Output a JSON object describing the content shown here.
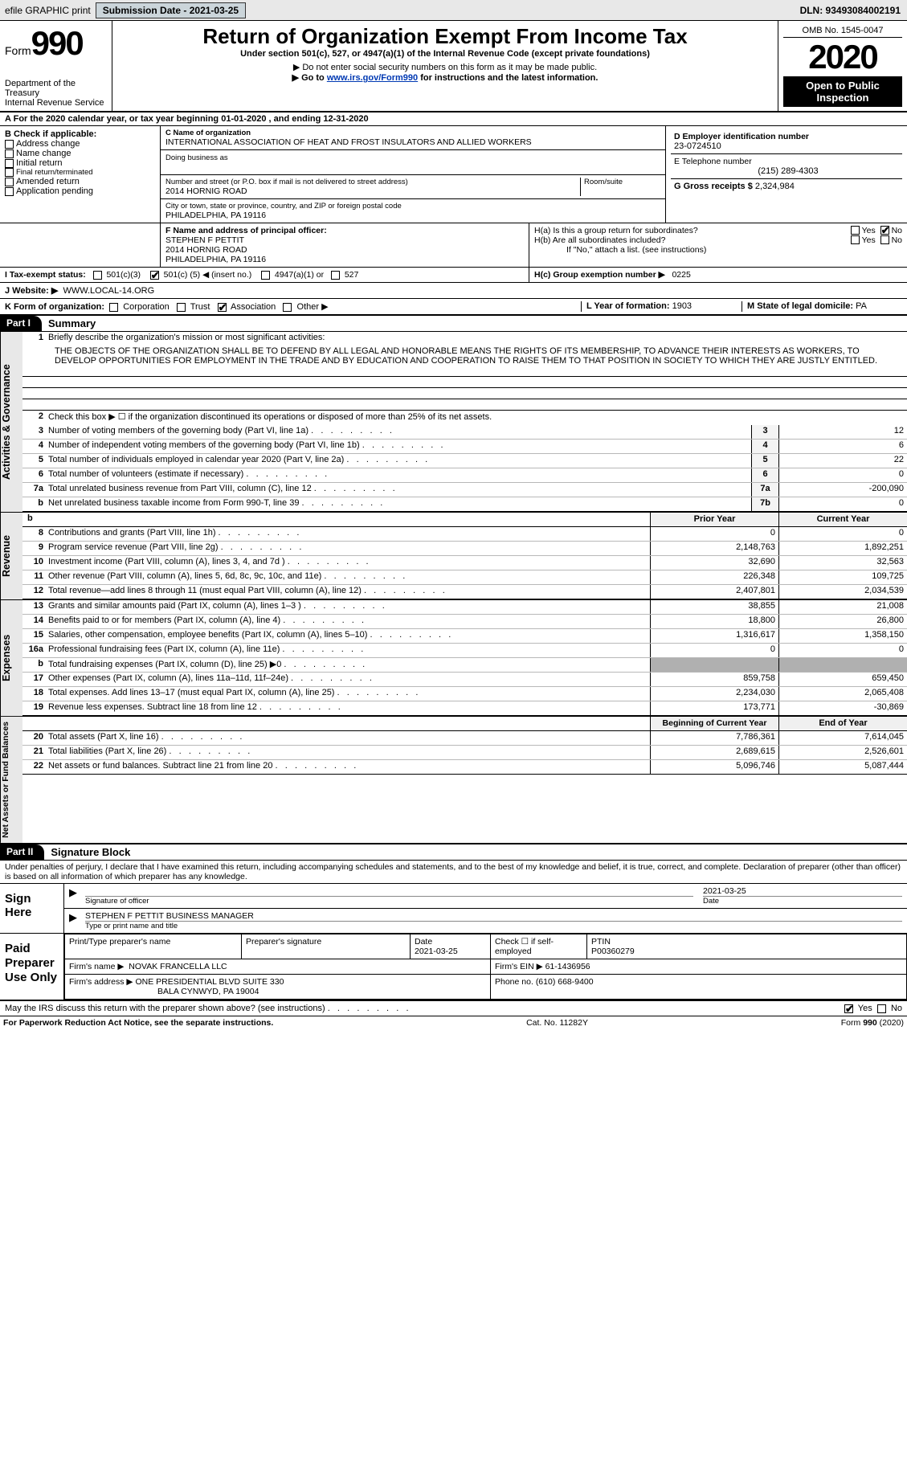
{
  "header_bar": {
    "efile_label": "efile GRAPHIC print",
    "btn_label": "Submission Date - 2021-03-25",
    "dln": "DLN: 93493084002191"
  },
  "top": {
    "form_word": "Form",
    "form_num": "990",
    "dept": "Department of the Treasury\nInternal Revenue Service",
    "title": "Return of Organization Exempt From Income Tax",
    "subtitle": "Under section 501(c), 527, or 4947(a)(1) of the Internal Revenue Code (except private foundations)",
    "note1": "▶ Do not enter social security numbers on this form as it may be made public.",
    "note2_pre": "▶ Go to ",
    "note2_link": "www.irs.gov/Form990",
    "note2_post": " for instructions and the latest information.",
    "omb": "OMB No. 1545-0047",
    "year": "2020",
    "open": "Open to Public Inspection"
  },
  "period": "For the 2020 calendar year, or tax year beginning 01-01-2020     , and ending 12-31-2020",
  "B": {
    "hdr": "B Check if applicable:",
    "items": [
      "Address change",
      "Name change",
      "Initial return",
      "Final return/terminated",
      "Amended return",
      "Application pending"
    ]
  },
  "C": {
    "name_label": "C Name of organization",
    "name": "INTERNATIONAL ASSOCIATION OF HEAT AND FROST INSULATORS AND ALLIED WORKERS",
    "dba_label": "Doing business as",
    "addr_label": "Number and street (or P.O. box if mail is not delivered to street address)",
    "room_label": "Room/suite",
    "addr": "2014 HORNIG ROAD",
    "city_label": "City or town, state or province, country, and ZIP or foreign postal code",
    "city": "PHILADELPHIA, PA  19116"
  },
  "D": {
    "ein_label": "D Employer identification number",
    "ein": "23-0724510",
    "tel_label": "E Telephone number",
    "tel": "(215) 289-4303",
    "gross_label": "G Gross receipts $",
    "gross": "2,324,984"
  },
  "F": {
    "label": "F  Name and address of principal officer:",
    "name": "STEPHEN F PETTIT",
    "addr1": "2014 HORNIG ROAD",
    "addr2": "PHILADELPHIA, PA  19116"
  },
  "H": {
    "a": "H(a)  Is this a group return for subordinates?",
    "b": "H(b)  Are all subordinates included?",
    "note": "If \"No,\" attach a list. (see instructions)",
    "c": "H(c)  Group exemption number ▶",
    "c_val": "0225"
  },
  "I": {
    "label": "I   Tax-exempt status:",
    "c3": "501(c)(3)",
    "c_pre": "501(c) (",
    "c_val": "5",
    "c_post": ") ◀ (insert no.)",
    "a1": "4947(a)(1) or",
    "s527": "527"
  },
  "J": {
    "label": "J   Website: ▶",
    "val": "WWW.LOCAL-14.ORG"
  },
  "K": {
    "label": "K Form of organization:",
    "opts": [
      "Corporation",
      "Trust",
      "Association",
      "Other ▶"
    ],
    "checked": 2
  },
  "L": {
    "label": "L Year of formation:",
    "val": "1903"
  },
  "M": {
    "label": "M State of legal domicile:",
    "val": "PA"
  },
  "part1": {
    "label": "Part I",
    "name": "Summary"
  },
  "mission": {
    "q1label": "Briefly describe the organization's mission or most significant activities:",
    "text": "THE OBJECTS OF THE ORGANIZATION SHALL BE TO DEFEND BY ALL LEGAL AND HONORABLE MEANS THE RIGHTS OF ITS MEMBERSHIP, TO ADVANCE THEIR INTERESTS AS WORKERS, TO DEVELOP OPPORTUNITIES FOR EMPLOYMENT IN THE TRADE AND BY EDUCATION AND COOPERATION TO RAISE THEM TO THAT POSITION IN SOCIETY TO WHICH THEY ARE JUSTLY ENTITLED."
  },
  "gov": {
    "q2": "Check this box ▶ ☐  if the organization discontinued its operations or disposed of more than 25% of its net assets.",
    "rows": [
      {
        "n": "3",
        "t": "Number of voting members of the governing body (Part VI, line 1a)",
        "box": "3",
        "v": "12"
      },
      {
        "n": "4",
        "t": "Number of independent voting members of the governing body (Part VI, line 1b)",
        "box": "4",
        "v": "6"
      },
      {
        "n": "5",
        "t": "Total number of individuals employed in calendar year 2020 (Part V, line 2a)",
        "box": "5",
        "v": "22"
      },
      {
        "n": "6",
        "t": "Total number of volunteers (estimate if necessary)",
        "box": "6",
        "v": "0"
      },
      {
        "n": "7a",
        "t": "Total unrelated business revenue from Part VIII, column (C), line 12",
        "box": "7a",
        "v": "-200,090"
      },
      {
        "n": "b",
        "t": "Net unrelated business taxable income from Form 990-T, line 39",
        "box": "7b",
        "v": "0"
      }
    ]
  },
  "two_col_hdr": {
    "b": "b",
    "py": "Prior Year",
    "cy": "Current Year"
  },
  "rev": [
    {
      "n": "8",
      "t": "Contributions and grants (Part VIII, line 1h)",
      "p": "0",
      "c": "0"
    },
    {
      "n": "9",
      "t": "Program service revenue (Part VIII, line 2g)",
      "p": "2,148,763",
      "c": "1,892,251"
    },
    {
      "n": "10",
      "t": "Investment income (Part VIII, column (A), lines 3, 4, and 7d )",
      "p": "32,690",
      "c": "32,563"
    },
    {
      "n": "11",
      "t": "Other revenue (Part VIII, column (A), lines 5, 6d, 8c, 9c, 10c, and 11e)",
      "p": "226,348",
      "c": "109,725"
    },
    {
      "n": "12",
      "t": "Total revenue—add lines 8 through 11 (must equal Part VIII, column (A), line 12)",
      "p": "2,407,801",
      "c": "2,034,539"
    }
  ],
  "exp": [
    {
      "n": "13",
      "t": "Grants and similar amounts paid (Part IX, column (A), lines 1–3 )",
      "p": "38,855",
      "c": "21,008"
    },
    {
      "n": "14",
      "t": "Benefits paid to or for members (Part IX, column (A), line 4)",
      "p": "18,800",
      "c": "26,800"
    },
    {
      "n": "15",
      "t": "Salaries, other compensation, employee benefits (Part IX, column (A), lines 5–10)",
      "p": "1,316,617",
      "c": "1,358,150"
    },
    {
      "n": "16a",
      "t": "Professional fundraising fees (Part IX, column (A), line 11e)",
      "p": "0",
      "c": "0"
    },
    {
      "n": "b",
      "t": "Total fundraising expenses (Part IX, column (D), line 25) ▶0",
      "p": "",
      "c": "",
      "gray": true
    },
    {
      "n": "17",
      "t": "Other expenses (Part IX, column (A), lines 11a–11d, 11f–24e)",
      "p": "859,758",
      "c": "659,450"
    },
    {
      "n": "18",
      "t": "Total expenses. Add lines 13–17 (must equal Part IX, column (A), line 25)",
      "p": "2,234,030",
      "c": "2,065,408"
    },
    {
      "n": "19",
      "t": "Revenue less expenses. Subtract line 18 from line 12",
      "p": "173,771",
      "c": "-30,869"
    }
  ],
  "na_hdr": {
    "b": "Beginning of Current Year",
    "e": "End of Year"
  },
  "na": [
    {
      "n": "20",
      "t": "Total assets (Part X, line 16)",
      "p": "7,786,361",
      "c": "7,614,045"
    },
    {
      "n": "21",
      "t": "Total liabilities (Part X, line 26)",
      "p": "2,689,615",
      "c": "2,526,601"
    },
    {
      "n": "22",
      "t": "Net assets or fund balances. Subtract line 21 from line 20",
      "p": "5,096,746",
      "c": "5,087,444"
    }
  ],
  "part2": {
    "label": "Part II",
    "name": "Signature Block"
  },
  "sig": {
    "decl": "Under penalties of perjury, I declare that I have examined this return, including accompanying schedules and statements, and to the best of my knowledge and belief, it is true, correct, and complete. Declaration of preparer (other than officer) is based on all information of which preparer has any knowledge.",
    "sign_here": "Sign Here",
    "date": "2021-03-25",
    "sig_label": "Signature of officer",
    "date_label": "Date",
    "name": "STEPHEN F PETTIT  BUSINESS MANAGER",
    "name_label": "Type or print name and title"
  },
  "prep": {
    "hdr": "Paid Preparer Use Only",
    "h1": "Print/Type preparer's name",
    "h2": "Preparer's signature",
    "h3": "Date",
    "h3v": "2021-03-25",
    "h4": "Check ☐ if self-employed",
    "h5": "PTIN",
    "h5v": "P00360279",
    "firm_l": "Firm's name    ▶",
    "firm": "NOVAK FRANCELLA LLC",
    "ein_l": "Firm's EIN ▶",
    "ein": "61-1436956",
    "addr_l": "Firm's address ▶",
    "addr1": "ONE PRESIDENTIAL BLVD SUITE 330",
    "addr2": "BALA CYNWYD, PA  19004",
    "phone_l": "Phone no.",
    "phone": "(610) 668-9400"
  },
  "discuss": {
    "t": "May the IRS discuss this return with the preparer shown above? (see instructions)",
    "yes": "Yes",
    "no": "No"
  },
  "footer": {
    "l": "For Paperwork Reduction Act Notice, see the separate instructions.",
    "m": "Cat. No. 11282Y",
    "r": "Form 990 (2020)"
  },
  "vtabs": {
    "gov": "Activities & Governance",
    "rev": "Revenue",
    "exp": "Expenses",
    "na": "Net Assets or Fund Balances"
  }
}
